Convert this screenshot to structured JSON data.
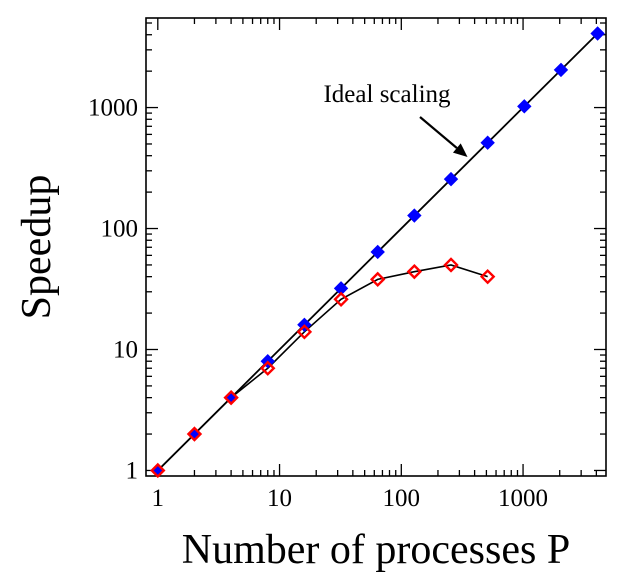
{
  "chart_data": {
    "type": "scatter",
    "xlabel": "Number of processes P",
    "ylabel": "Speedup",
    "xscale": "log",
    "yscale": "log",
    "xlim": [
      0.8,
      4800
    ],
    "ylim": [
      0.9,
      5500
    ],
    "grid": false,
    "x_ticks": [
      {
        "value": 1,
        "label": "1"
      },
      {
        "value": 10,
        "label": "10"
      },
      {
        "value": 100,
        "label": "100"
      },
      {
        "value": 1000,
        "label": "1000"
      }
    ],
    "y_ticks": [
      {
        "value": 1,
        "label": "1"
      },
      {
        "value": 10,
        "label": "10"
      },
      {
        "value": 100,
        "label": "100"
      },
      {
        "value": 1000,
        "label": "1000"
      }
    ],
    "annotation": {
      "text": "Ideal scaling",
      "arrow_target": [
        350,
        390
      ]
    },
    "series": [
      {
        "marker": "filled-diamond",
        "color": "#0000ff",
        "line": false,
        "x": [
          1,
          2,
          4,
          8,
          16,
          32,
          64,
          128,
          256,
          512,
          1024,
          2048,
          4096
        ],
        "y": [
          1,
          2,
          4,
          8,
          16,
          32,
          64,
          128,
          256,
          512,
          1024,
          2048,
          4096
        ]
      },
      {
        "marker": "open-diamond",
        "color": "#ff0000",
        "line": true,
        "x": [
          1,
          2,
          4,
          8,
          16,
          32,
          64,
          128,
          256,
          512
        ],
        "y": [
          1,
          2,
          4,
          7,
          14,
          26,
          38,
          44,
          50,
          40
        ]
      }
    ],
    "ideal_line": {
      "x": [
        1,
        4096
      ],
      "y": [
        1,
        4096
      ],
      "color": "#000000"
    }
  }
}
